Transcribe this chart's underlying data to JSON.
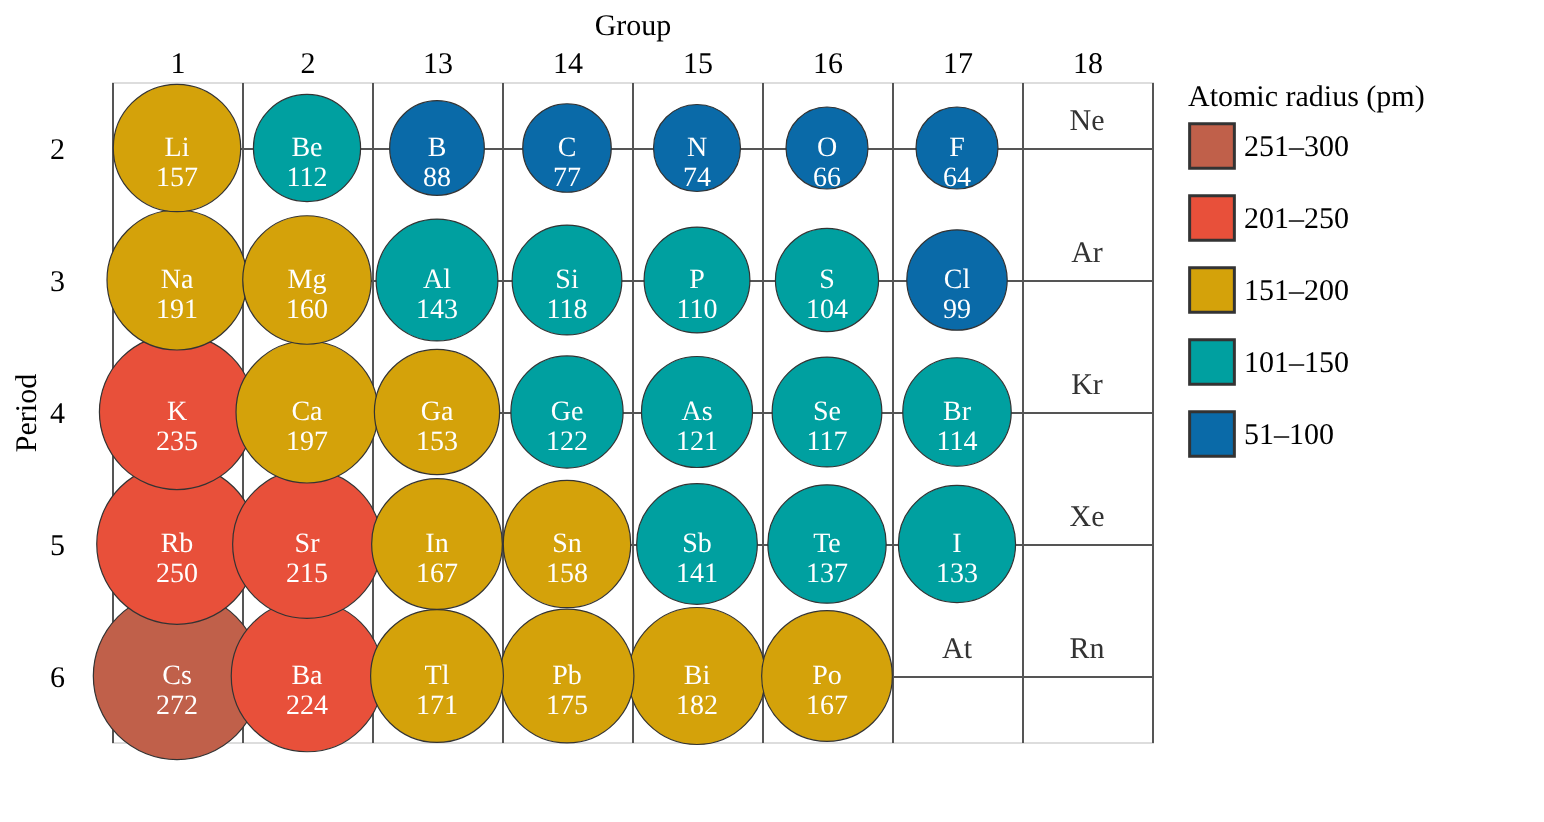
{
  "chart_data": {
    "type": "bubble",
    "xlabel": "Group",
    "ylabel": "Period",
    "legend_title": "Atomic radius (pm)",
    "legend": "right",
    "grid": true,
    "categories": [
      "1",
      "2",
      "13",
      "14",
      "15",
      "16",
      "17",
      "18"
    ],
    "ylim": [
      6.5,
      1.5
    ],
    "yticks": [
      2,
      3,
      4,
      5,
      6
    ],
    "series": [
      {
        "name": "251–300",
        "color": "#c0604a",
        "x": [
          "1"
        ],
        "values": [
          6
        ],
        "sizes": [
          1
        ],
        "value_labels": [
          "Cs 272"
        ]
      },
      {
        "name": "201–250",
        "color": "#e8503a",
        "x": [
          "1",
          "1",
          "2",
          "2"
        ],
        "values": [
          4,
          5,
          5,
          6
        ],
        "sizes": [
          0.86,
          0.92,
          0.79,
          0.82
        ],
        "value_labels": [
          "K 235",
          "Rb 250",
          "Sr 215",
          "Ba 224"
        ]
      },
      {
        "name": "151–200",
        "color": "#d4a20a",
        "x": [
          "1",
          "1",
          "2",
          "2",
          "13",
          "13",
          "13",
          "14",
          "14",
          "15",
          "16"
        ],
        "values": [
          2,
          3,
          3,
          4,
          4,
          5,
          6,
          5,
          6,
          6,
          6
        ],
        "sizes": [
          0.58,
          0.7,
          0.59,
          0.72,
          0.56,
          0.61,
          0.63,
          0.58,
          0.64,
          0.67,
          0.61
        ],
        "value_labels": [
          "Li 157",
          "Na 191",
          "Mg 160",
          "Ca 197",
          "Ga 153",
          "In 167",
          "Tl 171",
          "Sn 158",
          "Pb 175",
          "Bi 182",
          "Po 167"
        ]
      },
      {
        "name": "101–150",
        "color": "#00a0a0",
        "x": [
          "2",
          "13",
          "14",
          "15",
          "16",
          "14",
          "15",
          "16",
          "17",
          "15",
          "16",
          "17"
        ],
        "values": [
          2,
          3,
          3,
          3,
          3,
          4,
          4,
          4,
          4,
          5,
          5,
          5
        ],
        "sizes": [
          0.41,
          0.53,
          0.43,
          0.4,
          0.38,
          0.45,
          0.44,
          0.43,
          0.42,
          0.52,
          0.5,
          0.49
        ],
        "value_labels": [
          "Be 112",
          "Al 143",
          "Si 118",
          "P 110",
          "S 104",
          "Ge 122",
          "As 121",
          "Se 117",
          "Br 114",
          "Sb 141",
          "Te 137",
          "I 133"
        ]
      },
      {
        "name": "51–100",
        "color": "#0a6aa8",
        "x": [
          "13",
          "14",
          "15",
          "16",
          "17",
          "17"
        ],
        "values": [
          2,
          2,
          2,
          2,
          2,
          3
        ],
        "sizes": [
          0.32,
          0.28,
          0.27,
          0.24,
          0.24,
          0.36
        ],
        "value_labels": [
          "B 88",
          "C 77",
          "N 74",
          "O 66",
          "F 64",
          "Cl 99"
        ]
      }
    ],
    "annotations": [
      "Ne",
      "Ar",
      "Kr",
      "Xe",
      "At",
      "Rn"
    ]
  }
}
